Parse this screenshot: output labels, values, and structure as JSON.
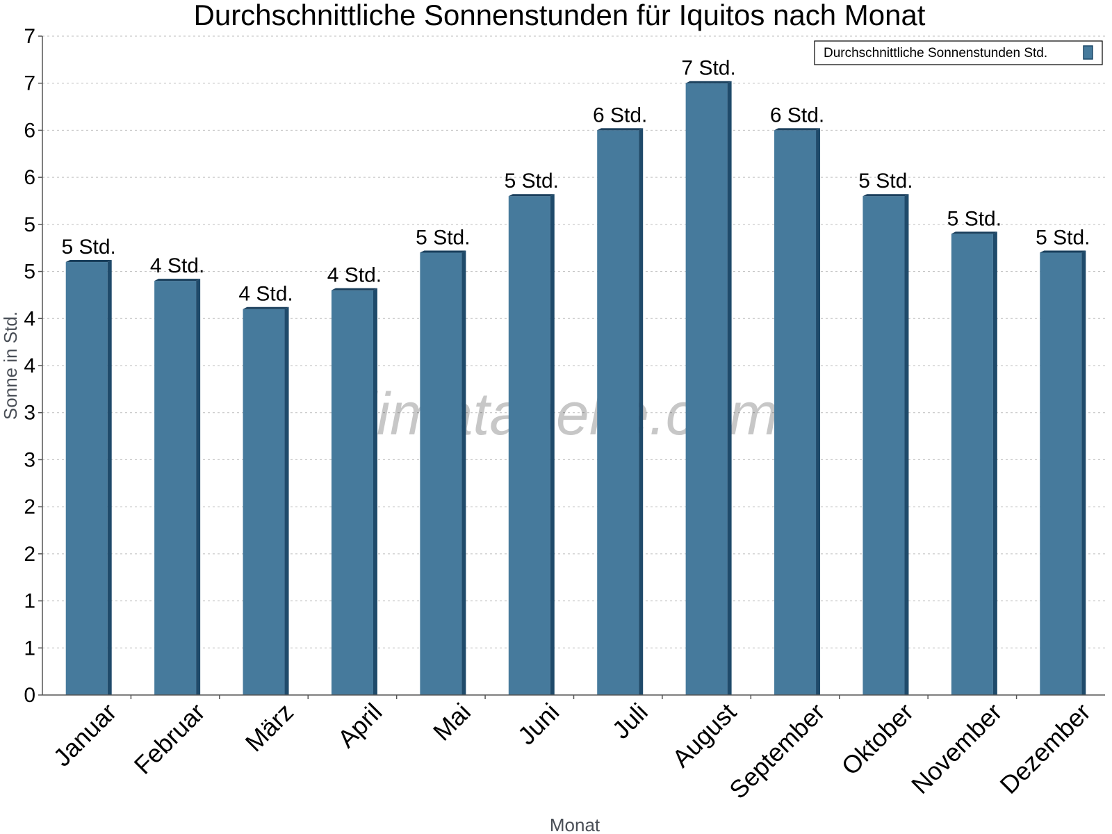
{
  "chart_data": {
    "type": "bar",
    "title": "Durchschnittliche Sonnenstunden für Iquitos nach Monat",
    "xlabel": "Monat",
    "ylabel": "Sonne in Std.",
    "ylim": [
      0,
      7
    ],
    "yticks": [
      0,
      0.5,
      1,
      1.5,
      2,
      2.5,
      3,
      3.5,
      4,
      4.5,
      5,
      5.5,
      6,
      6.5,
      7
    ],
    "ytick_labels": [
      "0",
      "1",
      "1",
      "2",
      "2",
      "3",
      "3",
      "4",
      "4",
      "5",
      "5",
      "6",
      "6",
      "7",
      "7"
    ],
    "categories": [
      "Januar",
      "Februar",
      "März",
      "April",
      "Mai",
      "Juni",
      "Juli",
      "August",
      "September",
      "Oktober",
      "November",
      "Dezember"
    ],
    "series": [
      {
        "name": "Durchschnittliche Sonnenstunden Std.",
        "color": "#467a9c",
        "values": [
          4.6,
          4.4,
          4.1,
          4.3,
          4.7,
          5.3,
          6.0,
          6.5,
          6.0,
          5.3,
          4.9,
          4.7
        ],
        "labels": [
          "5 Std.",
          "4 Std.",
          "4 Std.",
          "4 Std.",
          "5 Std.",
          "5 Std.",
          "6 Std.",
          "7 Std.",
          "6 Std.",
          "5 Std.",
          "5 Std.",
          "5 Std."
        ]
      }
    ],
    "grid": true,
    "legend_position": "top-right",
    "watermark": "klimatabelle.com"
  }
}
